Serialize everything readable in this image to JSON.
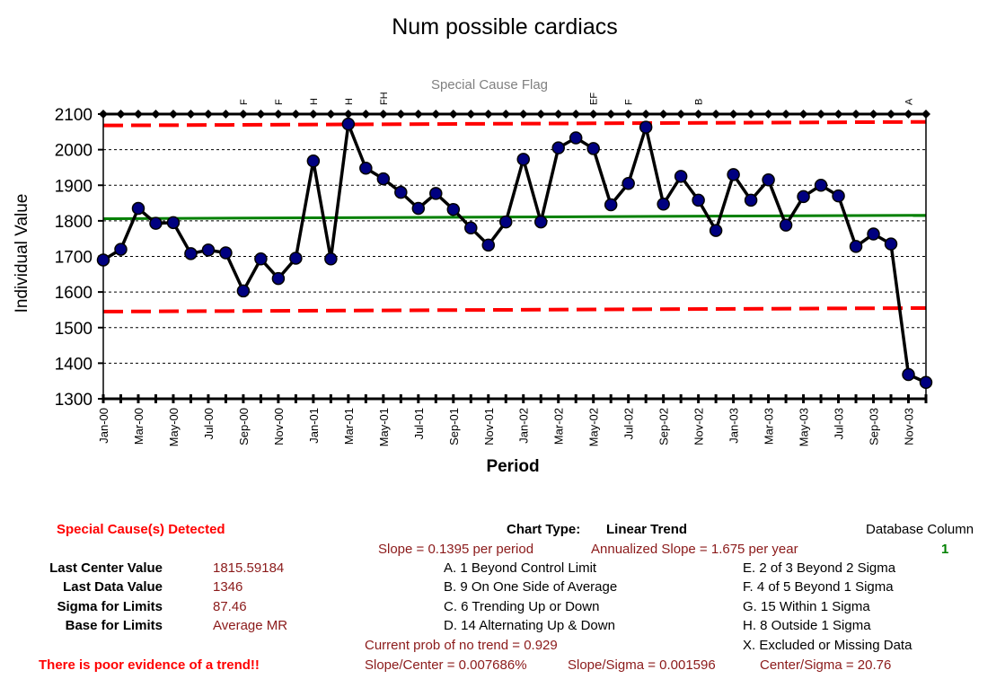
{
  "chart_data": {
    "type": "line",
    "title": "Num possible cardiacs",
    "flag_title": "Special Cause Flag",
    "xlabel": "Period",
    "ylabel": "Individual Value",
    "ylim": [
      1300,
      2100
    ],
    "yticks": [
      1300,
      1400,
      1500,
      1600,
      1700,
      1800,
      1900,
      2000,
      2100
    ],
    "grid": "horizontal dashed",
    "tick_labels": [
      "Jan-00",
      "Mar-00",
      "May-00",
      "Jul-00",
      "Sep-00",
      "Nov-00",
      "Jan-01",
      "Mar-01",
      "May-01",
      "Jul-01",
      "Sep-01",
      "Nov-01",
      "Jan-02",
      "Mar-02",
      "May-02",
      "Jul-02",
      "Sep-02",
      "Nov-02",
      "Jan-03",
      "Mar-03",
      "May-03",
      "Jul-03",
      "Sep-03",
      "Nov-03"
    ],
    "series": [
      {
        "values": [
          1690,
          1720,
          1835,
          1793,
          1795,
          1708,
          1718,
          1710,
          1603,
          1693,
          1638,
          1695,
          1968,
          1693,
          2072,
          1948,
          1918,
          1880,
          1835,
          1877,
          1832,
          1780,
          1732,
          1797,
          1973,
          1797,
          2005,
          2033,
          2003,
          1845,
          1905,
          2063,
          1847,
          1925,
          1858,
          1773,
          1930,
          1858,
          1915,
          1788,
          1868,
          1900,
          1870,
          1728,
          1763,
          1735,
          1368,
          1346
        ]
      }
    ],
    "center_line": {
      "start": 1806,
      "end": 1815.6
    },
    "upper_limit": {
      "start": 2068,
      "end": 2078
    },
    "lower_limit": {
      "start": 1545,
      "end": 1555
    },
    "flags": [
      {
        "index": 8,
        "label": "F"
      },
      {
        "index": 10,
        "label": "F"
      },
      {
        "index": 12,
        "label": "H"
      },
      {
        "index": 14,
        "label": "H"
      },
      {
        "index": 16,
        "label": "FH"
      },
      {
        "index": 28,
        "label": "EF"
      },
      {
        "index": 30,
        "label": "F"
      },
      {
        "index": 34,
        "label": "B"
      },
      {
        "index": 46,
        "label": "A"
      }
    ],
    "colors": {
      "line": "#000000",
      "marker": "#000080",
      "center": "#008000",
      "limits": "#ff0000"
    }
  },
  "panel": {
    "special_cause": "Special Cause(s) Detected",
    "evidence": "There is poor evidence of a trend!!",
    "stats": [
      {
        "label": "Last Center Value",
        "value": "1815.59184"
      },
      {
        "label": "Last Data Value",
        "value": "1346"
      },
      {
        "label": "Sigma for Limits",
        "value": "87.46"
      },
      {
        "label": "Base for Limits",
        "value": "Average MR"
      }
    ],
    "chart_type_label": "Chart Type:",
    "chart_type_value": "Linear Trend",
    "slope": "Slope = 0.1395 per period",
    "annualized": "Annualized Slope = 1.675 per year",
    "rules_left": [
      "A.  1 Beyond Control Limit",
      "B.  9 On One Side of Average",
      "C.  6 Trending Up or Down",
      "D.  14 Alternating  Up & Down"
    ],
    "rules_right": [
      "E.  2 of 3 Beyond 2 Sigma",
      "F.  4 of 5 Beyond 1 Sigma",
      "G.  15 Within 1 Sigma",
      "H.  8 Outside 1 Sigma",
      "X.  Excluded or Missing Data"
    ],
    "prob": "Current prob of no trend = 0.929",
    "slope_center": "Slope/Center = 0.007686%",
    "slope_sigma": "Slope/Sigma = 0.001596",
    "center_sigma": "Center/Sigma = 20.76",
    "database_label": "Database Column",
    "database_value": "1"
  }
}
